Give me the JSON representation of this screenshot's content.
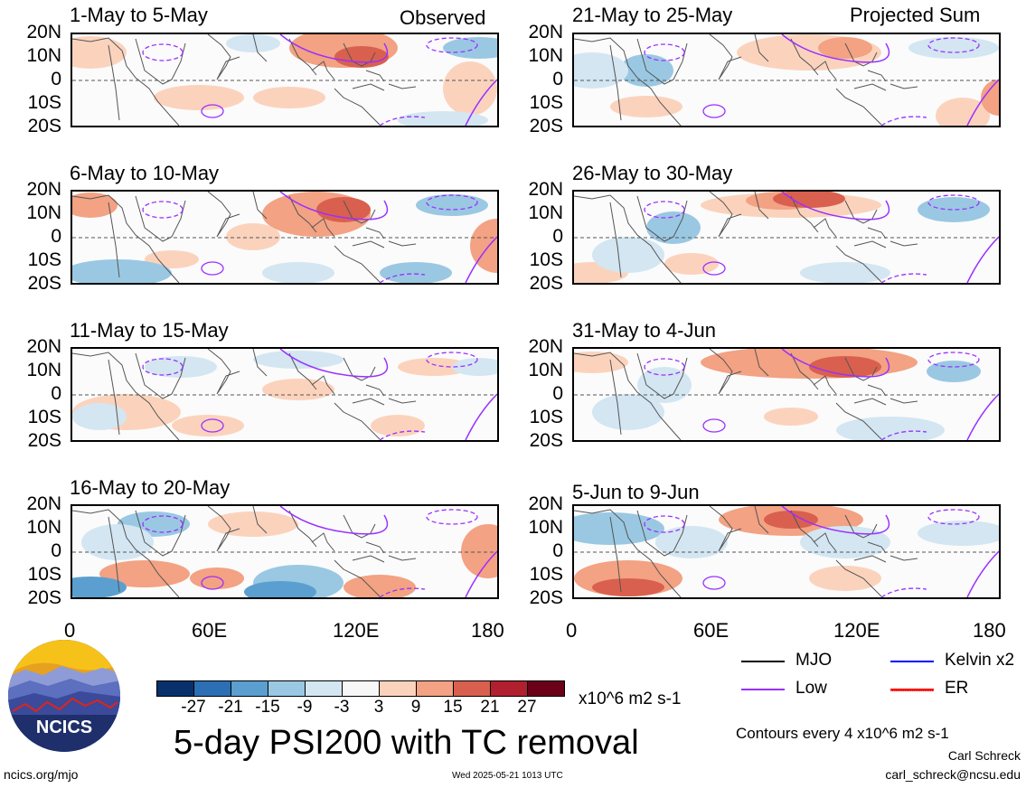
{
  "column_headers": {
    "left": "Observed",
    "right": "Projected Sum"
  },
  "panels_left": [
    {
      "title": "1-May to 5-May"
    },
    {
      "title": "6-May to 10-May"
    },
    {
      "title": "11-May to 15-May"
    },
    {
      "title": "16-May to 20-May"
    }
  ],
  "panels_right": [
    {
      "title": "21-May to 25-May"
    },
    {
      "title": "26-May to 30-May"
    },
    {
      "title": "31-May to 4-Jun"
    },
    {
      "title": "5-Jun to 9-Jun"
    }
  ],
  "lat_labels": [
    "20N",
    "10N",
    "0",
    "10S",
    "20S"
  ],
  "lon_labels": [
    "0",
    "60E",
    "120E",
    "180"
  ],
  "colorbar": {
    "colors": [
      "#08306b",
      "#2c6fb5",
      "#5a9fd0",
      "#9ac8e3",
      "#d3e6f2",
      "#f7f7f7",
      "#fbd3bd",
      "#f3a283",
      "#d9604e",
      "#b1202e",
      "#6b0019"
    ],
    "labels": [
      "-27",
      "-21",
      "-15",
      "-9",
      "-3",
      "3",
      "9",
      "15",
      "21",
      "27"
    ],
    "units": "x10^6 m2 s-1"
  },
  "legend": {
    "items": [
      {
        "label": "MJO",
        "color": "#000000"
      },
      {
        "label": "Kelvin x2",
        "color": "#0000ff"
      },
      {
        "label": "Low",
        "color": "#9b30ff"
      },
      {
        "label": "ER",
        "color": "#ff0000"
      }
    ]
  },
  "main_title": "5-day PSI200 with TC removal",
  "contour_note": "Contours every 4 x10^6 m2 s-1",
  "logo_text": "NCICS",
  "site": "ncics.org/mjo",
  "timestamp": "Wed 2025-05-21 1013 UTC",
  "author": "Carl Schreck",
  "email": "carl_schreck@ncsu.edu"
}
